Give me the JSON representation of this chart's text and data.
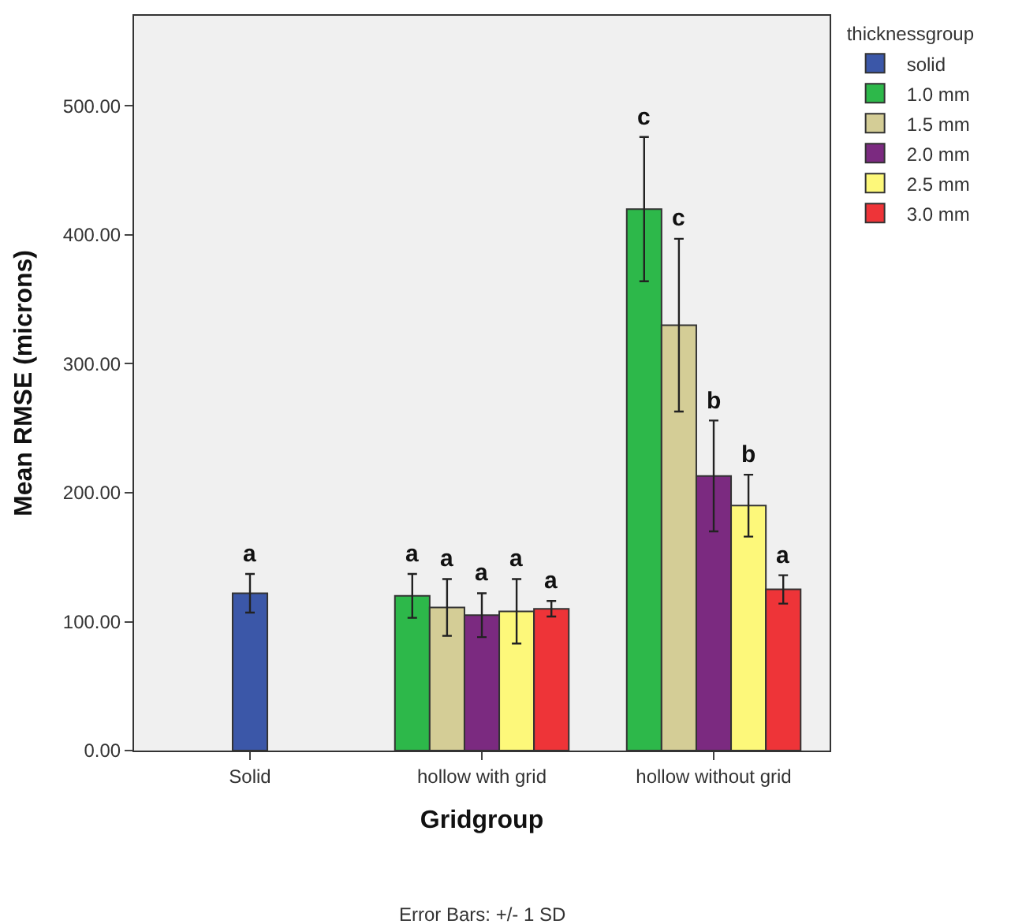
{
  "chart_data": {
    "type": "bar",
    "xlabel": "Gridgroup",
    "ylabel": "Mean RMSE (microns)",
    "legend_title": "thicknessgroup",
    "categories": [
      "Solid",
      "hollow with grid",
      "hollow without grid"
    ],
    "series": [
      {
        "name": "solid",
        "color": "#3b57a8",
        "values": [
          122,
          null,
          null
        ],
        "errors": [
          15,
          null,
          null
        ]
      },
      {
        "name": "1.0 mm",
        "color": "#2db84a",
        "values": [
          null,
          120,
          420
        ],
        "errors": [
          null,
          17,
          56
        ]
      },
      {
        "name": "1.5 mm",
        "color": "#d4cd96",
        "values": [
          null,
          111,
          330
        ],
        "errors": [
          null,
          22,
          67
        ]
      },
      {
        "name": "2.0 mm",
        "color": "#7b2a80",
        "values": [
          null,
          105,
          213
        ],
        "errors": [
          null,
          17,
          43
        ]
      },
      {
        "name": "2.5 mm",
        "color": "#fdf87a",
        "values": [
          null,
          108,
          190
        ],
        "errors": [
          null,
          25,
          24
        ]
      },
      {
        "name": "3.0 mm",
        "color": "#ee3438",
        "values": [
          null,
          110,
          125
        ],
        "errors": [
          null,
          6,
          11
        ]
      }
    ],
    "ylim": [
      0,
      570
    ],
    "yticks": [
      {
        "value": 0,
        "label": "0.00"
      },
      {
        "value": 100,
        "label": "100.00"
      },
      {
        "value": 200,
        "label": "200.00"
      },
      {
        "value": 300,
        "label": "300.00"
      },
      {
        "value": 400,
        "label": "400.00"
      },
      {
        "value": 500,
        "label": "500.00"
      }
    ],
    "grid": false,
    "legend": "top right",
    "annotations": [
      "Error Bars: +/- 1 SD",
      "a",
      "a",
      "a",
      "a",
      "a",
      "a",
      "c",
      "c",
      "b",
      "b",
      "a"
    ]
  }
}
